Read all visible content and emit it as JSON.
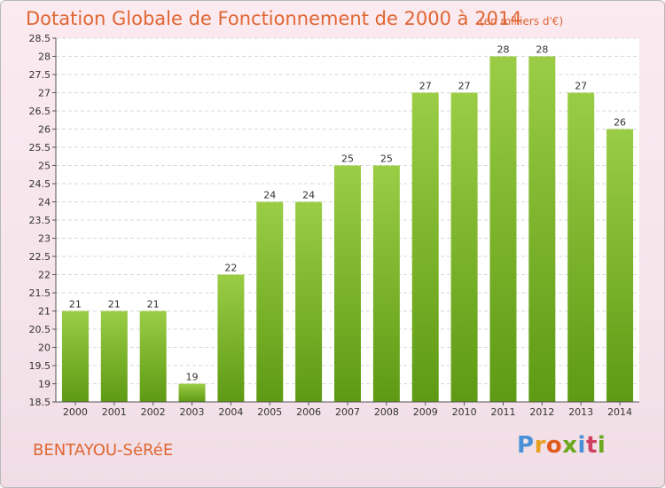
{
  "title": "Dotation Globale de Fonctionnement de 2000 à 2014",
  "subtitle": "(en milliers d'€)",
  "commune": "BENTAYOU-SéRéE",
  "logo": {
    "letters": [
      "P",
      "r",
      "o",
      "x",
      "i",
      "t",
      "i"
    ],
    "colors": [
      "#4a90d9",
      "#e8a020",
      "#e05a1e",
      "#6aa81e",
      "#4a90d9",
      "#d04060",
      "#6aa81e"
    ]
  },
  "colors": {
    "bar_top": "#9acd45",
    "bar_bottom": "#5e9a14",
    "title": "#e06633"
  },
  "chart_data": {
    "type": "bar",
    "categories": [
      "2000",
      "2001",
      "2002",
      "2003",
      "2004",
      "2005",
      "2006",
      "2007",
      "2008",
      "2009",
      "2010",
      "2011",
      "2012",
      "2013",
      "2014"
    ],
    "values": [
      21,
      21,
      21,
      19,
      22,
      24,
      24,
      25,
      25,
      27,
      27,
      28,
      28,
      27,
      26
    ],
    "ylim": [
      18.5,
      28.5
    ],
    "yticks": [
      18.5,
      19,
      19.5,
      20,
      20.5,
      21,
      21.5,
      22,
      22.5,
      23,
      23.5,
      24,
      24.5,
      25,
      25.5,
      26,
      26.5,
      27,
      27.5,
      28,
      28.5
    ],
    "grid": true,
    "xlabel": "",
    "ylabel": ""
  }
}
